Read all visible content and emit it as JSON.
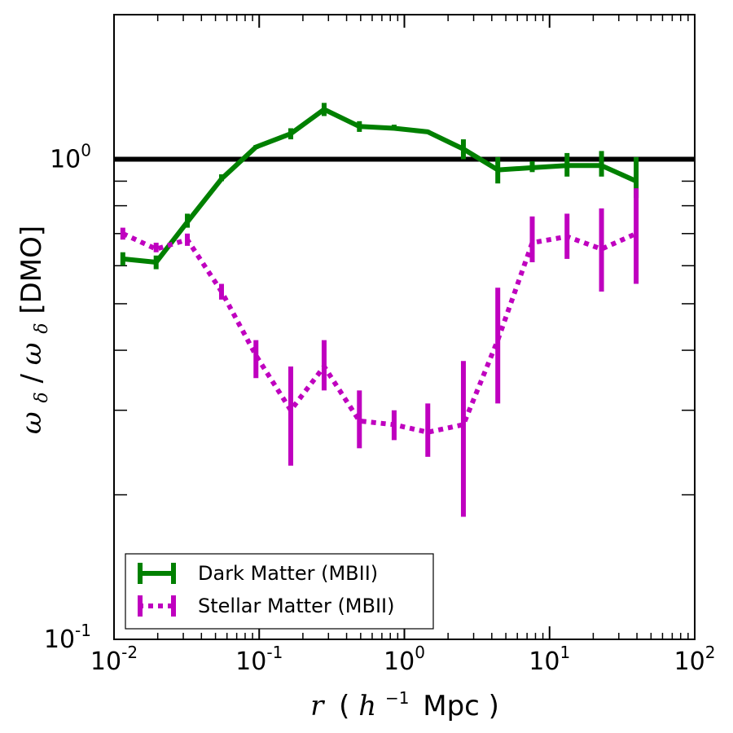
{
  "chart_data": {
    "type": "line",
    "xscale": "log",
    "yscale": "log",
    "xlim": [
      0.01,
      100
    ],
    "ylim": [
      0.1,
      2.0
    ],
    "xlabel": {
      "italic": "r",
      "paren_open": "(",
      "h_italic": "h",
      "h_exp": "−1",
      "unit": "Mpc",
      "paren_close": ")"
    },
    "ylabel": {
      "omega1": "ω",
      "sub1": "δ",
      "slash": " / ",
      "omega2": "ω",
      "sub2": "δ",
      "suffix": "[DMO]"
    },
    "x_ticks": [
      {
        "value": 0.01,
        "base": "10",
        "exp": "-2"
      },
      {
        "value": 0.1,
        "base": "10",
        "exp": "-1"
      },
      {
        "value": 1,
        "base": "10",
        "exp": "0"
      },
      {
        "value": 10,
        "base": "10",
        "exp": "1"
      },
      {
        "value": 100,
        "base": "10",
        "exp": "2"
      }
    ],
    "y_ticks": [
      {
        "value": 0.1,
        "base": "10",
        "exp": "-1"
      },
      {
        "value": 1,
        "base": "10",
        "exp": "0"
      }
    ],
    "reference_line": {
      "y": 1.0,
      "color": "#000000"
    },
    "series": [
      {
        "name": "Dark Matter (MBII)",
        "color": "#008000",
        "style": "solid",
        "x": [
          0.0115,
          0.0195,
          0.032,
          0.055,
          0.095,
          0.165,
          0.28,
          0.49,
          0.85,
          1.45,
          2.55,
          4.4,
          7.6,
          13.2,
          22.8,
          39.5
        ],
        "y": [
          0.62,
          0.61,
          0.74,
          0.91,
          1.06,
          1.13,
          1.27,
          1.17,
          1.16,
          1.14,
          1.05,
          0.95,
          0.96,
          0.97,
          0.97,
          0.9
        ],
        "err_low": [
          0.6,
          0.59,
          0.72,
          0.9,
          1.05,
          1.1,
          1.23,
          1.14,
          1.15,
          1.13,
          1.0,
          0.89,
          0.94,
          0.92,
          0.92,
          0.83
        ],
        "err_high": [
          0.64,
          0.63,
          0.77,
          0.93,
          1.07,
          1.16,
          1.31,
          1.2,
          1.18,
          1.15,
          1.1,
          1.01,
          0.99,
          1.03,
          1.04,
          1.01
        ]
      },
      {
        "name": "Stellar Matter (MBII)",
        "color": "#bf00bf",
        "style": "dotted",
        "x": [
          0.0115,
          0.0195,
          0.032,
          0.055,
          0.095,
          0.165,
          0.28,
          0.49,
          0.85,
          1.45,
          2.55,
          4.4,
          7.6,
          13.2,
          22.8,
          39.5
        ],
        "y": [
          0.7,
          0.65,
          0.68,
          0.53,
          0.39,
          0.3,
          0.37,
          0.285,
          0.28,
          0.27,
          0.28,
          0.42,
          0.67,
          0.69,
          0.65,
          0.7
        ],
        "err_low": [
          0.68,
          0.64,
          0.66,
          0.51,
          0.35,
          0.23,
          0.33,
          0.25,
          0.26,
          0.24,
          0.18,
          0.31,
          0.61,
          0.62,
          0.53,
          0.55
        ],
        "err_high": [
          0.72,
          0.67,
          0.7,
          0.55,
          0.42,
          0.37,
          0.42,
          0.33,
          0.3,
          0.31,
          0.38,
          0.54,
          0.76,
          0.77,
          0.79,
          0.87
        ]
      }
    ],
    "legend": {
      "position": "lower-left"
    }
  }
}
